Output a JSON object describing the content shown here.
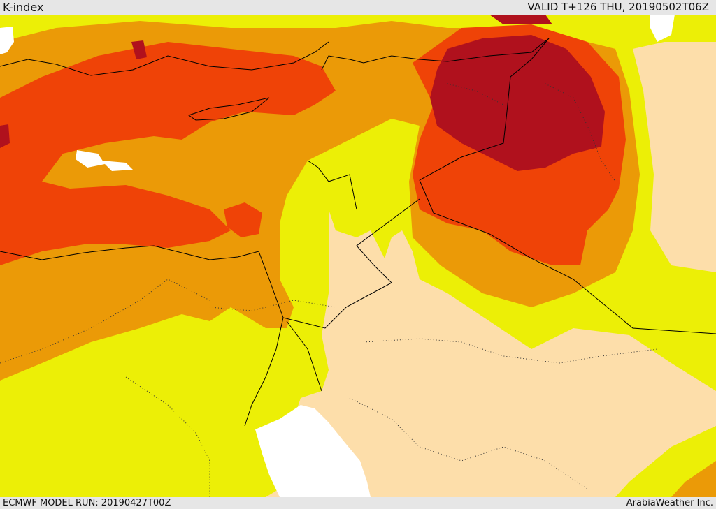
{
  "header": {
    "title": "K-index",
    "valid": "VALID T+126 THU, 20190502T06Z"
  },
  "footer": {
    "model_run": "ECMWF MODEL RUN: 20190427T00Z",
    "credit": "ArabiaWeather Inc."
  },
  "colors": {
    "sea_white": "#ffffff",
    "land_base": "#fddeaa",
    "k_low": "#ecef06",
    "k_medium": "#eb9a07",
    "k_high": "#ef4307",
    "k_very_high": "#b0111d",
    "border": "#000000"
  }
}
